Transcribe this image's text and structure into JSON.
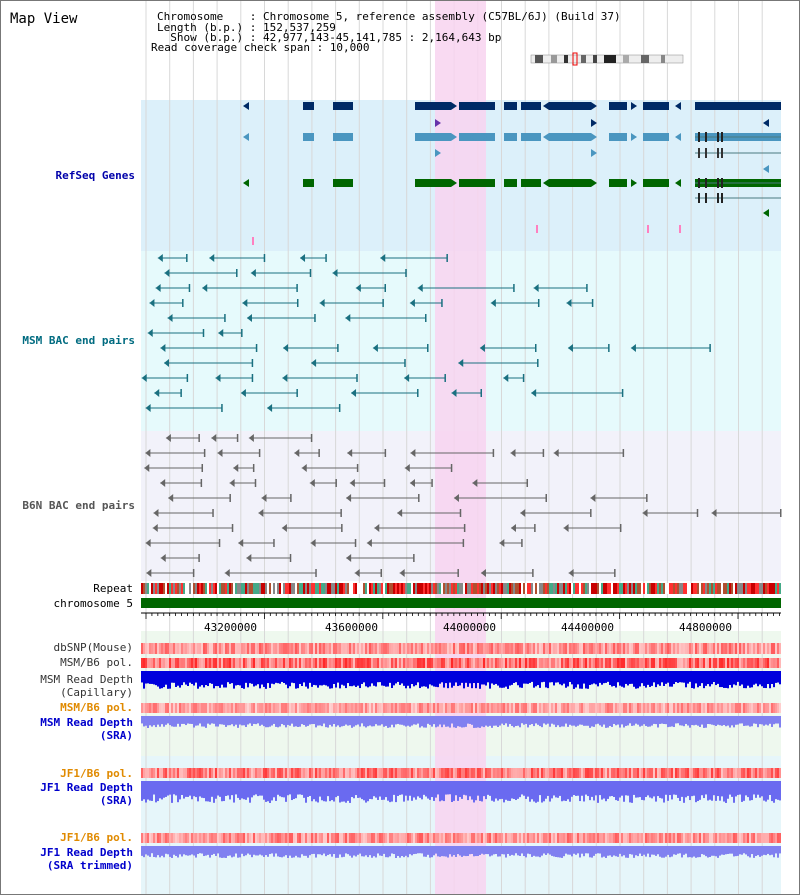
{
  "title": "Map View",
  "info": {
    "chromosome_key": "Chromosome    :",
    "chromosome_val": "Chromosome 5, reference assembly (C57BL/6J) (Build 37)",
    "length_key": "Length (b.p.) :",
    "length_val": "152,537,259",
    "show_key": "  Show (b.p.) :",
    "show_val": "42,977,143-45,141,785 : 2,164,643 bp",
    "coverage_key": "Read coverage check span :",
    "coverage_val": "10,000"
  },
  "tracks": {
    "refseq": {
      "label": "RefSeq Genes",
      "color": "#0000aa"
    },
    "msm_bac": {
      "label": "MSM BAC end pairs",
      "color": "#006b80"
    },
    "b6n_bac": {
      "label": "B6N BAC end pairs",
      "color": "#555555"
    },
    "repeat": {
      "label": "Repeat"
    },
    "chromosome": {
      "label": "chromosome 5",
      "color": "#006600"
    },
    "dbsnp": {
      "label": "dbSNP(Mouse)"
    },
    "msm_b6_pol": {
      "label": "MSM/B6 pol."
    },
    "msm_depth_cap": {
      "label": "MSM Read Depth",
      "sub": "(Capillary)"
    },
    "msm_b6_pol2": {
      "label": "MSM/B6 pol.",
      "color": "#e08a00"
    },
    "msm_depth_sra": {
      "label": "MSM Read Depth",
      "sub": "(SRA)",
      "color": "#0000cc"
    },
    "jf1_b6_pol": {
      "label": "JF1/B6 pol.",
      "color": "#e08a00"
    },
    "jf1_depth_sra": {
      "label": "JF1 Read Depth",
      "sub": "(SRA)",
      "color": "#0000cc"
    },
    "jf1_b6_pol2": {
      "label": "JF1/B6 pol.",
      "color": "#e08a00"
    },
    "jf1_depth_trim": {
      "label": "JF1 Read Depth",
      "sub": "(SRA trimmed)",
      "color": "#0000cc"
    }
  },
  "axis": {
    "ticks": [
      "43200000",
      "43600000",
      "44000000",
      "44400000",
      "44800000"
    ]
  },
  "colors": {
    "refseq_bg": "#dcf0fa",
    "msm_bg": "#e6fafc",
    "b6n_bg": "#f2f2fa",
    "highlight": "#f8d4f0",
    "gene_dark": "#002a66",
    "gene_mid": "#4a96c0",
    "gene_green": "#006600"
  }
}
